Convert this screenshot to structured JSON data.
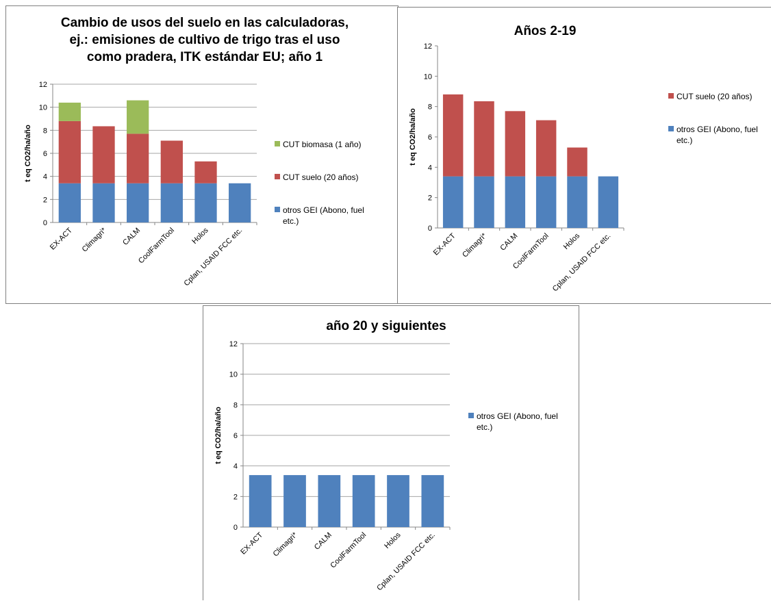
{
  "colors": {
    "otros": "#4f81bd",
    "suelo": "#c0504d",
    "biomasa": "#9bbb59",
    "grid": "#a6a6a6",
    "axis": "#868686"
  },
  "chart_data": [
    {
      "type": "bar",
      "stacked": true,
      "title_lines": [
        "Cambio de usos del suelo en las calculadoras,",
        "ej.: emisiones de cultivo de trigo tras el uso",
        "como pradera, ITK estándar EU; año 1"
      ],
      "ylabel": "t eq CO2/ha/año",
      "ylim": [
        0,
        12
      ],
      "yticks": [
        0,
        2,
        4,
        6,
        8,
        10,
        12
      ],
      "grid": true,
      "legend_position": "right",
      "categories": [
        "EX-ACT",
        "Climagri*",
        "CALM",
        "CoolFarmTool",
        "Holos",
        "Cplan, USAID FCC etc."
      ],
      "series": [
        {
          "key": "otros",
          "name": "otros GEI (Abono, fuel etc.)",
          "legend_lines": [
            "otros GEI (Abono, fuel",
            "etc.)"
          ],
          "values": [
            3.4,
            3.4,
            3.4,
            3.4,
            3.4,
            3.4
          ]
        },
        {
          "key": "suelo",
          "name": "CUT suelo (20 años)",
          "legend_lines": [
            "CUT suelo (20 años)"
          ],
          "values": [
            5.4,
            4.95,
            4.3,
            3.7,
            1.9,
            0
          ]
        },
        {
          "key": "biomasa",
          "name": "CUT biomasa (1 año)",
          "legend_lines": [
            "CUT biomasa (1 año)"
          ],
          "values": [
            1.6,
            0,
            2.9,
            0,
            0,
            0
          ]
        }
      ]
    },
    {
      "type": "bar",
      "stacked": true,
      "title_lines": [
        "Años 2-19"
      ],
      "ylabel": "t eq CO2/ha/año",
      "ylim": [
        0,
        12
      ],
      "yticks": [
        0,
        2,
        4,
        6,
        8,
        10,
        12
      ],
      "grid": false,
      "legend_position": "right",
      "categories": [
        "EX-ACT",
        "Climagri*",
        "CALM",
        "CoolFarmTool",
        "Holos",
        "Cplan, USAID FCC etc."
      ],
      "series": [
        {
          "key": "otros",
          "name": "otros GEI (Abono, fuel etc.)",
          "legend_lines": [
            "otros GEI (Abono, fuel",
            "etc.)"
          ],
          "values": [
            3.4,
            3.4,
            3.4,
            3.4,
            3.4,
            3.4
          ]
        },
        {
          "key": "suelo",
          "name": "CUT suelo (20 años)",
          "legend_lines": [
            "CUT suelo (20 años)"
          ],
          "values": [
            5.4,
            4.95,
            4.3,
            3.7,
            1.9,
            0
          ]
        }
      ]
    },
    {
      "type": "bar",
      "stacked": true,
      "title_lines": [
        "año 20 y siguientes"
      ],
      "ylabel": "t eq CO2/ha/año",
      "ylim": [
        0,
        12
      ],
      "yticks": [
        0,
        2,
        4,
        6,
        8,
        10,
        12
      ],
      "grid": true,
      "legend_position": "right",
      "categories": [
        "EX-ACT",
        "Climagri*",
        "CALM",
        "CoolFarmTool",
        "Holos",
        "Cplan, USAID FCC etc."
      ],
      "series": [
        {
          "key": "otros",
          "name": "otros GEI (Abono, fuel etc.)",
          "legend_lines": [
            "otros GEI (Abono, fuel",
            "etc.)"
          ],
          "values": [
            3.4,
            3.4,
            3.4,
            3.4,
            3.4,
            3.4
          ]
        }
      ]
    }
  ]
}
